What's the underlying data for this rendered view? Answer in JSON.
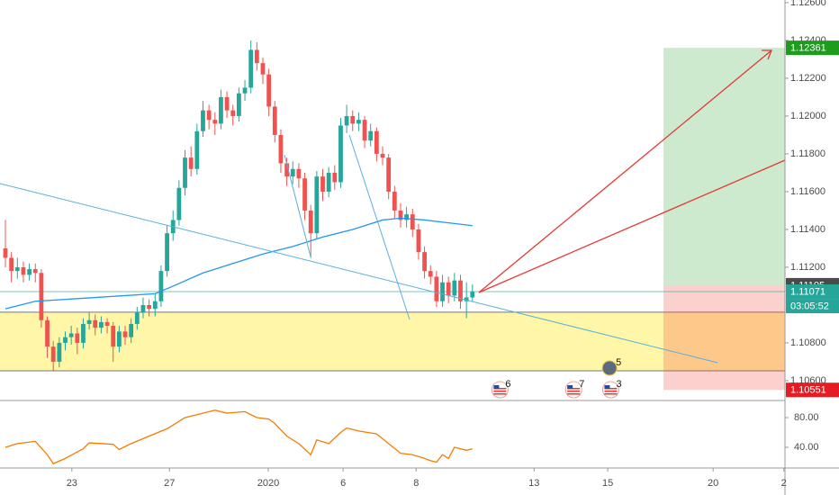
{
  "chart_data": {
    "type": "candlestick",
    "colors": {
      "up": "#26a69a",
      "down": "#ef5350"
    },
    "ohlc": [
      [
        1.113,
        1.1145,
        1.112,
        1.1125
      ],
      [
        1.1125,
        1.1128,
        1.1112,
        1.1118
      ],
      [
        1.1118,
        1.1125,
        1.1114,
        1.112
      ],
      [
        1.112,
        1.1123,
        1.1112,
        1.1116
      ],
      [
        1.1116,
        1.1122,
        1.1113,
        1.1119
      ],
      [
        1.1119,
        1.1122,
        1.1112,
        1.1117
      ],
      [
        1.1117,
        1.1119,
        1.1088,
        1.1092
      ],
      [
        1.1092,
        1.1094,
        1.1072,
        1.1078
      ],
      [
        1.1078,
        1.1081,
        1.1065,
        1.107
      ],
      [
        1.107,
        1.1083,
        1.1067,
        1.108
      ],
      [
        1.108,
        1.1086,
        1.1076,
        1.1083
      ],
      [
        1.1083,
        1.1089,
        1.1079,
        1.1085
      ],
      [
        1.1085,
        1.1088,
        1.1074,
        1.108
      ],
      [
        1.108,
        1.1093,
        1.1077,
        1.109
      ],
      [
        1.109,
        1.1096,
        1.1087,
        1.1092
      ],
      [
        1.1092,
        1.1095,
        1.1084,
        1.1088
      ],
      [
        1.1088,
        1.1094,
        1.1085,
        1.1091
      ],
      [
        1.1091,
        1.1093,
        1.1085,
        1.1089
      ],
      [
        1.1089,
        1.1091,
        1.107,
        1.1078
      ],
      [
        1.1078,
        1.1089,
        1.1075,
        1.1086
      ],
      [
        1.1086,
        1.1089,
        1.1079,
        1.1083
      ],
      [
        1.1083,
        1.1093,
        1.108,
        1.109
      ],
      [
        1.109,
        1.1099,
        1.1087,
        1.1096
      ],
      [
        1.1096,
        1.1104,
        1.1093,
        1.11
      ],
      [
        1.11,
        1.1103,
        1.1094,
        1.1098
      ],
      [
        1.1098,
        1.1106,
        1.1094,
        1.1102
      ],
      [
        1.1102,
        1.1121,
        1.1099,
        1.1118
      ],
      [
        1.1118,
        1.1142,
        1.1115,
        1.1138
      ],
      [
        1.1138,
        1.115,
        1.1134,
        1.1145
      ],
      [
        1.1145,
        1.1166,
        1.1142,
        1.1162
      ],
      [
        1.1162,
        1.1182,
        1.1158,
        1.1178
      ],
      [
        1.1178,
        1.1184,
        1.1168,
        1.1172
      ],
      [
        1.1172,
        1.1196,
        1.1169,
        1.1192
      ],
      [
        1.1192,
        1.1208,
        1.1189,
        1.1203
      ],
      [
        1.1203,
        1.1206,
        1.1193,
        1.1198
      ],
      [
        1.1198,
        1.1202,
        1.119,
        1.1196
      ],
      [
        1.1196,
        1.1214,
        1.1193,
        1.121
      ],
      [
        1.121,
        1.1213,
        1.1199,
        1.1203
      ],
      [
        1.1203,
        1.1206,
        1.1195,
        1.12
      ],
      [
        1.12,
        1.1215,
        1.1197,
        1.1212
      ],
      [
        1.1212,
        1.1219,
        1.1208,
        1.1215
      ],
      [
        1.1215,
        1.124,
        1.1212,
        1.1235
      ],
      [
        1.1235,
        1.1239,
        1.1224,
        1.1228
      ],
      [
        1.1228,
        1.1231,
        1.1217,
        1.1222
      ],
      [
        1.1222,
        1.1225,
        1.12,
        1.1205
      ],
      [
        1.1205,
        1.1208,
        1.1186,
        1.119
      ],
      [
        1.119,
        1.1193,
        1.117,
        1.1175
      ],
      [
        1.1175,
        1.1178,
        1.1163,
        1.1168
      ],
      [
        1.1168,
        1.1176,
        1.1164,
        1.1172
      ],
      [
        1.1172,
        1.1175,
        1.1162,
        1.1167
      ],
      [
        1.1167,
        1.117,
        1.1145,
        1.115
      ],
      [
        1.115,
        1.1153,
        1.1125,
        1.1138
      ],
      [
        1.1138,
        1.1171,
        1.1135,
        1.1168
      ],
      [
        1.1168,
        1.1172,
        1.1155,
        1.116
      ],
      [
        1.116,
        1.1173,
        1.1157,
        1.117
      ],
      [
        1.117,
        1.1174,
        1.1161,
        1.1165
      ],
      [
        1.1165,
        1.1199,
        1.1162,
        1.1195
      ],
      [
        1.1195,
        1.1206,
        1.1191,
        1.12
      ],
      [
        1.12,
        1.1203,
        1.1192,
        1.1196
      ],
      [
        1.1196,
        1.1202,
        1.1192,
        1.1198
      ],
      [
        1.1198,
        1.12,
        1.1183,
        1.1187
      ],
      [
        1.1187,
        1.1196,
        1.1184,
        1.1192
      ],
      [
        1.1192,
        1.1194,
        1.1176,
        1.118
      ],
      [
        1.118,
        1.1184,
        1.1174,
        1.1178
      ],
      [
        1.1178,
        1.118,
        1.1156,
        1.116
      ],
      [
        1.116,
        1.1163,
        1.1146,
        1.115
      ],
      [
        1.115,
        1.1154,
        1.1141,
        1.1145
      ],
      [
        1.1145,
        1.1152,
        1.1141,
        1.1148
      ],
      [
        1.1148,
        1.1151,
        1.1136,
        1.114
      ],
      [
        1.114,
        1.1143,
        1.1124,
        1.1128
      ],
      [
        1.1128,
        1.1131,
        1.1114,
        1.1118
      ],
      [
        1.1118,
        1.1121,
        1.1111,
        1.1115
      ],
      [
        1.1115,
        1.1118,
        1.1099,
        1.1102
      ],
      [
        1.1102,
        1.1116,
        1.1099,
        1.1112
      ],
      [
        1.1112,
        1.1115,
        1.1101,
        1.1105
      ],
      [
        1.1105,
        1.1117,
        1.1102,
        1.1113
      ],
      [
        1.1113,
        1.1116,
        1.1098,
        1.1102
      ],
      [
        1.1102,
        1.1112,
        1.1093,
        1.1104
      ],
      [
        1.1104,
        1.1111,
        1.1102,
        1.11071
      ]
    ],
    "xlim": [
      -0.9,
      130.2
    ],
    "xticks": [
      {
        "value": 11.1,
        "label": "23"
      },
      {
        "value": 27.4,
        "label": "27"
      },
      {
        "value": 43.9,
        "label": "2020"
      },
      {
        "value": 56.4,
        "label": "6"
      },
      {
        "value": 68.6,
        "label": "8"
      },
      {
        "value": 88.3,
        "label": "13"
      },
      {
        "value": 100.6,
        "label": "15"
      },
      {
        "value": 118.2,
        "label": "20"
      },
      {
        "value": 130,
        "label": "2"
      }
    ],
    "ylim": [
      1.10495,
      1.12614
    ],
    "yticks": [
      {
        "value": 1.126,
        "label": "1.12600"
      },
      {
        "value": 1.124,
        "label": "1.12400"
      },
      {
        "value": 1.122,
        "label": "1.12200"
      },
      {
        "value": 1.12,
        "label": "1.12000"
      },
      {
        "value": 1.118,
        "label": "1.11800"
      },
      {
        "value": 1.116,
        "label": "1.11600"
      },
      {
        "value": 1.114,
        "label": "1.11400"
      },
      {
        "value": 1.112,
        "label": "1.11200"
      },
      {
        "value": 1.108,
        "label": "1.10800"
      },
      {
        "value": 1.106,
        "label": "1.10600"
      }
    ],
    "moving_average": {
      "color": "#2196f3",
      "x": [
        0,
        5,
        15,
        25,
        28,
        33,
        38,
        43,
        48,
        53,
        58,
        63,
        66,
        70,
        78
      ],
      "values": [
        1.1098,
        1.1102,
        1.1104,
        1.1106,
        1.111,
        1.1117,
        1.1122,
        1.1127,
        1.1131,
        1.1136,
        1.114,
        1.1145,
        1.1146,
        1.1145,
        1.1142
      ]
    },
    "zone": {
      "low": 1.10652,
      "high": 1.10962,
      "color": "#ffeb3b"
    },
    "position": {
      "entry": 1.11105,
      "target": 1.12361,
      "stop": 1.10551
    },
    "last_price": 1.11071,
    "countdown": "03:05:52",
    "events": [
      {
        "label": "6",
        "x": 82.6
      },
      {
        "label": "7",
        "x": 94.9
      },
      {
        "label": "3",
        "x": 101.1
      }
    ],
    "event_special": {
      "label": "5",
      "x": 100.9
    },
    "oscillator": {
      "type": "line",
      "color": "#f57c00",
      "x": [
        0,
        2,
        5,
        7,
        8,
        10,
        13,
        14,
        18,
        19,
        21,
        24,
        27,
        30,
        32,
        35,
        37,
        40,
        42,
        44,
        45,
        47,
        49,
        51,
        52,
        54,
        56,
        57,
        59,
        62,
        64,
        66,
        68,
        70,
        71,
        72,
        73,
        74,
        75,
        76,
        77,
        78
      ],
      "values": [
        40,
        45,
        48,
        30,
        18,
        25,
        38,
        46,
        44,
        37,
        45,
        55,
        65,
        80,
        84,
        90,
        86,
        88,
        80,
        78,
        72,
        55,
        45,
        30,
        50,
        45,
        60,
        66,
        62,
        58,
        45,
        32,
        30,
        25,
        22,
        20,
        30,
        25,
        40,
        38,
        36,
        38
      ],
      "ylim": [
        12.1,
        98.2
      ],
      "yticks": [
        {
          "value": 80,
          "label": "80.00"
        },
        {
          "value": 40,
          "label": "40.00"
        }
      ]
    }
  }
}
